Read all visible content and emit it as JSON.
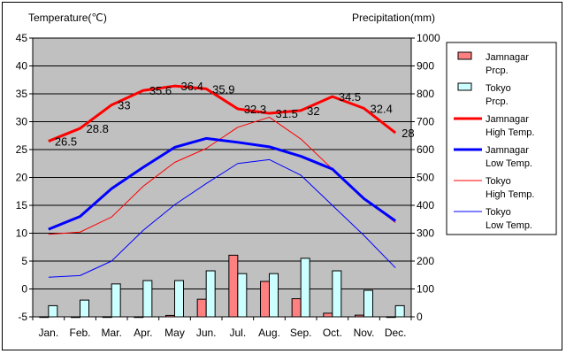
{
  "chart_data": {
    "type": "bar+line",
    "y_left_label": "Temperature(℃)",
    "y_right_label": "Precipitation(mm)",
    "y_left_range": [
      -5,
      45
    ],
    "y_left_ticks": [
      "45",
      "40",
      "35",
      "30",
      "25",
      "20",
      "15",
      "10",
      "5",
      "0",
      "-5"
    ],
    "y_right_range": [
      0,
      1000
    ],
    "y_right_ticks": [
      "1000",
      "900",
      "800",
      "700",
      "600",
      "500",
      "400",
      "300",
      "200",
      "100",
      "0"
    ],
    "categories": [
      "Jan.",
      "Feb.",
      "Mar.",
      "Apr.",
      "May",
      "Jun.",
      "Jul.",
      "Aug.",
      "Sep.",
      "Oct.",
      "Nov.",
      "Dec."
    ],
    "bar_series": [
      {
        "name_lines": [
          "Jamnagar",
          "Prcp."
        ],
        "color": "#ff8080",
        "values": [
          0.3,
          0.1,
          0.4,
          0.2,
          5,
          63,
          221,
          127,
          65,
          13,
          6,
          0.3
        ]
      },
      {
        "name_lines": [
          "Tokyo",
          "Prcp."
        ],
        "color": "#ccffff",
        "values": [
          40,
          60,
          118,
          130,
          130,
          165,
          155,
          155,
          210,
          165,
          95,
          40
        ]
      }
    ],
    "line_series": [
      {
        "name_lines": [
          "Jamnagar",
          "High Temp."
        ],
        "color": "#ff0000",
        "width": 3,
        "values": [
          26.5,
          28.8,
          33,
          35.6,
          36.4,
          35.9,
          32.3,
          31.5,
          32,
          34.5,
          32.4,
          28
        ],
        "labels": [
          "26.5",
          "28.8",
          "33",
          "35.6",
          "36.4",
          "35.9",
          "32.3",
          "31.5",
          "32",
          "34.5",
          "32.4",
          "28"
        ]
      },
      {
        "name_lines": [
          "Jamnagar",
          "Low Temp."
        ],
        "color": "#0000ff",
        "width": 3,
        "values": [
          10.7,
          13,
          18,
          21.8,
          25.4,
          27,
          26.3,
          25.5,
          23.8,
          21.5,
          16.2,
          12.2
        ]
      },
      {
        "name_lines": [
          "Tokyo",
          "High Temp."
        ],
        "color": "#ff0000",
        "width": 1,
        "values": [
          9.8,
          10.2,
          12.9,
          18.4,
          22.7,
          25.2,
          29,
          30.8,
          26.9,
          21.5,
          16.3,
          11.9
        ]
      },
      {
        "name_lines": [
          "Tokyo",
          "Low Temp."
        ],
        "color": "#0000ff",
        "width": 1,
        "values": [
          2.1,
          2.4,
          5,
          10.5,
          15.1,
          18.9,
          22.5,
          23.2,
          20.4,
          15,
          9.6,
          3.8
        ]
      }
    ]
  }
}
